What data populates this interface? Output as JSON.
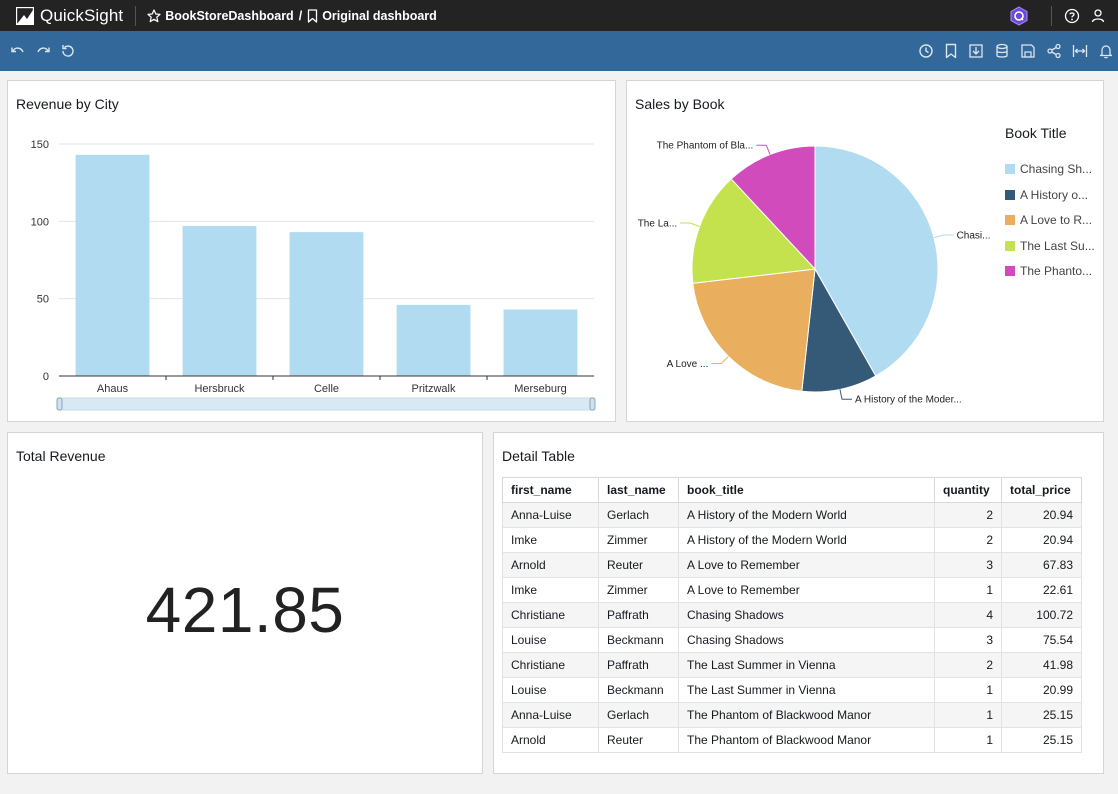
{
  "app": {
    "name": "QuickSight"
  },
  "breadcrumb": {
    "analysis": "BookStoreDashboard",
    "separator": "/",
    "sheet": "Original dashboard"
  },
  "colors": {
    "bar": "#b0dbf0",
    "topbar": "#232323",
    "toolbar": "#33689a"
  },
  "panels": {
    "revenue_by_city": {
      "title": "Revenue by City"
    },
    "sales_by_book": {
      "title": "Sales by Book",
      "legend_title": "Book Title"
    },
    "total_revenue": {
      "title": "Total Revenue",
      "value": "421.85"
    },
    "detail_table": {
      "title": "Detail Table"
    }
  },
  "chart_data": [
    {
      "type": "bar",
      "title": "Revenue by City",
      "categories": [
        "Ahaus",
        "Hersbruck",
        "Celle",
        "Pritzwalk",
        "Merseburg"
      ],
      "values": [
        143,
        97,
        93,
        46,
        43
      ],
      "ylim": [
        0,
        150
      ],
      "yticks": [
        0,
        50,
        100,
        150
      ],
      "grid": true
    },
    {
      "type": "pie",
      "title": "Sales by Book",
      "legend_title": "Book Title",
      "legend_position": "right",
      "slices": [
        {
          "label": "Chasing Shadows",
          "legend_label": "Chasing Sh...",
          "slice_label": "Chasi...",
          "value": 176.26,
          "color": "#b0dbf0"
        },
        {
          "label": "A History of the Modern World",
          "legend_label": "A History o...",
          "slice_label": "A History of the Moder...",
          "value": 41.88,
          "color": "#355a78"
        },
        {
          "label": "A Love to Remember",
          "legend_label": "A Love to R...",
          "slice_label": "A Love ...",
          "value": 90.44,
          "color": "#eaaf5e"
        },
        {
          "label": "The Last Summer in Vienna",
          "legend_label": "The Last Su...",
          "slice_label": "The La...",
          "value": 62.97,
          "color": "#c3e24d"
        },
        {
          "label": "The Phantom of Blackwood Manor",
          "legend_label": "The Phanto...",
          "slice_label": "The Phantom of Bla...",
          "value": 50.3,
          "color": "#d14bbd"
        }
      ]
    }
  ],
  "table": {
    "columns": [
      "first_name",
      "last_name",
      "book_title",
      "quantity",
      "total_price"
    ],
    "rows": [
      [
        "Anna-Luise",
        "Gerlach",
        "A History of the Modern World",
        "2",
        "20.94"
      ],
      [
        "Imke",
        "Zimmer",
        "A History of the Modern World",
        "2",
        "20.94"
      ],
      [
        "Arnold",
        "Reuter",
        "A Love to Remember",
        "3",
        "67.83"
      ],
      [
        "Imke",
        "Zimmer",
        "A Love to Remember",
        "1",
        "22.61"
      ],
      [
        "Christiane",
        "Paffrath",
        "Chasing Shadows",
        "4",
        "100.72"
      ],
      [
        "Louise",
        "Beckmann",
        "Chasing Shadows",
        "3",
        "75.54"
      ],
      [
        "Christiane",
        "Paffrath",
        "The Last Summer in Vienna",
        "2",
        "41.98"
      ],
      [
        "Louise",
        "Beckmann",
        "The Last Summer in Vienna",
        "1",
        "20.99"
      ],
      [
        "Anna-Luise",
        "Gerlach",
        "The Phantom of Blackwood Manor",
        "1",
        "25.15"
      ],
      [
        "Arnold",
        "Reuter",
        "The Phantom of Blackwood Manor",
        "1",
        "25.15"
      ]
    ]
  }
}
